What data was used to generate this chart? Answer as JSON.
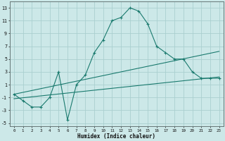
{
  "xlabel": "Humidex (Indice chaleur)",
  "bg_color": "#cce8e8",
  "grid_color": "#aacfcf",
  "line_color": "#1a7a6e",
  "xlim": [
    -0.5,
    23.5
  ],
  "ylim": [
    -5.5,
    14.0
  ],
  "xticks": [
    0,
    1,
    2,
    3,
    4,
    5,
    6,
    7,
    8,
    9,
    10,
    11,
    12,
    13,
    14,
    15,
    16,
    17,
    18,
    19,
    20,
    21,
    22,
    23
  ],
  "yticks": [
    -5,
    -3,
    -1,
    1,
    3,
    5,
    7,
    9,
    11,
    13
  ],
  "main_x": [
    0,
    1,
    2,
    3,
    4,
    5,
    6,
    7,
    8,
    9,
    10,
    11,
    12,
    13,
    14,
    15,
    16,
    17,
    18,
    19,
    20,
    21,
    22,
    23
  ],
  "main_y": [
    -0.5,
    -1.5,
    -2.5,
    -2.5,
    -1.0,
    3.0,
    -4.5,
    1.0,
    2.5,
    6.0,
    8.0,
    11.0,
    11.5,
    13.0,
    12.5,
    10.5,
    7.0,
    6.0,
    5.0,
    5.0,
    3.0,
    2.0,
    2.0,
    2.0
  ],
  "line2_x": [
    0,
    23
  ],
  "line2_y": [
    -1.2,
    2.2
  ],
  "line3_x": [
    0,
    23
  ],
  "line3_y": [
    -0.5,
    6.2
  ]
}
